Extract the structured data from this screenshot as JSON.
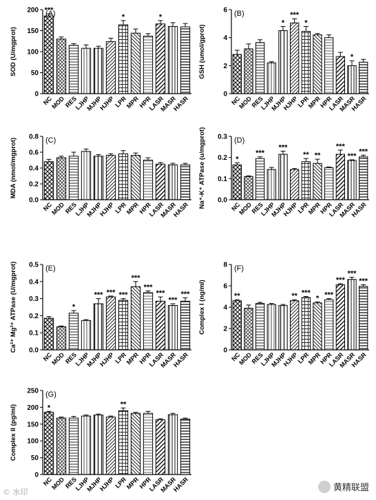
{
  "chart_data": [
    {
      "type": "bar",
      "panel": "(A)",
      "ylabel": "SOD (U/mgprot)",
      "ylim": [
        0,
        200
      ],
      "yticks": [
        0,
        50,
        100,
        150,
        200
      ],
      "categories": [
        "NC",
        "MOD",
        "RES",
        "LJHP",
        "MJHP",
        "HJHP",
        "LPR",
        "MPR",
        "HPR",
        "LASR",
        "MASR",
        "HASR"
      ],
      "values": [
        185,
        130,
        115,
        108,
        108,
        124,
        164,
        144,
        137,
        166,
        160,
        159
      ],
      "errors": [
        5,
        5,
        4,
        8,
        5,
        8,
        10,
        10,
        6,
        8,
        9,
        8
      ],
      "sig": [
        "***",
        "",
        "",
        "",
        "",
        "",
        "*",
        "",
        "",
        "*",
        "",
        ""
      ]
    },
    {
      "type": "bar",
      "panel": "(B)",
      "ylabel": "GSH (umol/gprot)",
      "ylim": [
        0,
        6
      ],
      "yticks": [
        0,
        2,
        4,
        6
      ],
      "categories": [
        "NC",
        "MOD",
        "RES",
        "LJHP",
        "MJHP",
        "HJHP",
        "LPR",
        "MPR",
        "HPR",
        "LASR",
        "MASR",
        "HASR"
      ],
      "values": [
        2.8,
        3.2,
        3.65,
        2.2,
        4.5,
        5.05,
        4.45,
        4.2,
        4.0,
        2.65,
        2.0,
        2.25
      ],
      "errors": [
        0.3,
        0.35,
        0.2,
        0.08,
        0.3,
        0.3,
        0.35,
        0.1,
        0.2,
        0.3,
        0.35,
        0.2
      ],
      "sig": [
        "",
        "",
        "",
        "",
        "*",
        "***",
        "*",
        "",
        "",
        "",
        "*",
        ""
      ]
    },
    {
      "type": "bar",
      "panel": "(C)",
      "ylabel": "MDA (nmol/mgprot)",
      "ylim": [
        0,
        0.8
      ],
      "yticks": [
        0.0,
        0.2,
        0.4,
        0.6,
        0.8
      ],
      "categories": [
        "NC",
        "MOD",
        "RES",
        "LJHP",
        "MJHP",
        "HJHP",
        "LPR",
        "MPR",
        "HPR",
        "LASR",
        "MASR",
        "HASR"
      ],
      "values": [
        0.48,
        0.53,
        0.55,
        0.61,
        0.55,
        0.56,
        0.58,
        0.56,
        0.5,
        0.45,
        0.44,
        0.44
      ],
      "errors": [
        0.03,
        0.02,
        0.05,
        0.03,
        0.02,
        0.02,
        0.04,
        0.03,
        0.03,
        0.02,
        0.02,
        0.02
      ],
      "sig": [
        "",
        "",
        "",
        "",
        "",
        "",
        "",
        "",
        "",
        "",
        "",
        ""
      ]
    },
    {
      "type": "bar",
      "panel": "(D)",
      "ylabel": "Na⁺-K⁺ ATPase (u/mgprot)",
      "ylim": [
        0,
        0.3
      ],
      "yticks": [
        0.0,
        0.1,
        0.2,
        0.3
      ],
      "categories": [
        "NC",
        "MOD",
        "RES",
        "LJHP",
        "MJHP",
        "HJHP",
        "LPR",
        "MPR",
        "HPR",
        "LASR",
        "MASR",
        "HASR"
      ],
      "values": [
        0.165,
        0.11,
        0.195,
        0.143,
        0.215,
        0.143,
        0.18,
        0.172,
        0.152,
        0.215,
        0.186,
        0.203
      ],
      "errors": [
        0.01,
        0.003,
        0.008,
        0.01,
        0.015,
        0.005,
        0.015,
        0.02,
        0.003,
        0.02,
        0.003,
        0.008
      ],
      "sig": [
        "*",
        "",
        "***",
        "",
        "***",
        "",
        "**",
        "**",
        "",
        "***",
        "***",
        "***"
      ]
    },
    {
      "type": "bar",
      "panel": "(E)",
      "ylabel": "Ca²⁺ Mg²⁺ ATPase (U/mgprot)",
      "ylim": [
        0,
        0.5
      ],
      "yticks": [
        0.0,
        0.1,
        0.2,
        0.3,
        0.4,
        0.5
      ],
      "categories": [
        "NC",
        "MOD",
        "RES",
        "LJHP",
        "MJHP",
        "HJHP",
        "LPR",
        "MPR",
        "HPR",
        "LASR",
        "MASR",
        "HASR"
      ],
      "values": [
        0.185,
        0.135,
        0.215,
        0.172,
        0.27,
        0.31,
        0.29,
        0.37,
        0.335,
        0.285,
        0.26,
        0.285
      ],
      "errors": [
        0.01,
        0.005,
        0.015,
        0.005,
        0.03,
        0.005,
        0.01,
        0.03,
        0.01,
        0.025,
        0.01,
        0.02
      ],
      "sig": [
        "",
        "",
        "*",
        "",
        "***",
        "***",
        "***",
        "***",
        "***",
        "***",
        "***",
        "***"
      ]
    },
    {
      "type": "bar",
      "panel": "(F)",
      "ylabel": "Complex I (ng/ml)",
      "ylim": [
        0,
        8
      ],
      "yticks": [
        0,
        2,
        4,
        6,
        8
      ],
      "categories": [
        "NC",
        "MOD",
        "RES",
        "LJHP",
        "MJHP",
        "HJHP",
        "LPR",
        "MPR",
        "HPR",
        "LASR",
        "MASR",
        "HASR"
      ],
      "values": [
        4.6,
        3.9,
        4.35,
        4.25,
        4.15,
        4.6,
        4.9,
        4.4,
        4.7,
        6.1,
        6.6,
        5.95
      ],
      "errors": [
        0.1,
        0.3,
        0.1,
        0.1,
        0.1,
        0.1,
        0.1,
        0.1,
        0.1,
        0.1,
        0.2,
        0.15
      ],
      "sig": [
        "**",
        "",
        "",
        "",
        "",
        "**",
        "***",
        "*",
        "***",
        "***",
        "***",
        "***"
      ]
    },
    {
      "type": "bar",
      "panel": "(G)",
      "ylabel": "Complex II (pg/ml)",
      "ylim": [
        0,
        250
      ],
      "yticks": [
        0,
        50,
        100,
        150,
        200,
        250
      ],
      "categories": [
        "NC",
        "MOD",
        "RES",
        "LJHP",
        "MJHP",
        "HJHP",
        "LPR",
        "MPR",
        "HPR",
        "LASR",
        "MASR",
        "HASR"
      ],
      "values": [
        185,
        168,
        168,
        174,
        177,
        171,
        190,
        182,
        182,
        163,
        178,
        165
      ],
      "errors": [
        3,
        3,
        5,
        3,
        3,
        3,
        8,
        3,
        6,
        3,
        4,
        3
      ],
      "sig": [
        "*",
        "",
        "",
        "",
        "",
        "",
        "**",
        "",
        "",
        "",
        "",
        ""
      ]
    }
  ],
  "watermark": {
    "text": "黄精联盟",
    "left_text": "© 水印"
  }
}
